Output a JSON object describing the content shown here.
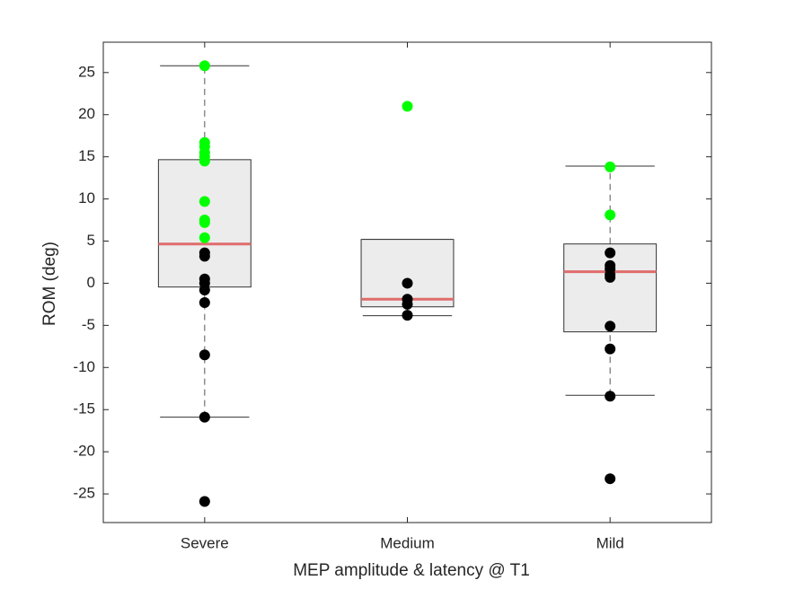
{
  "chart_data": {
    "type": "box",
    "xlabel": "MEP amplitude & latency @ T1",
    "ylabel": "ROM (deg)",
    "categories": [
      "Severe",
      "Medium",
      "Mild"
    ],
    "boxes": [
      {
        "lower": -15.9,
        "q1": -0.45,
        "median": 4.66,
        "q3": 14.66,
        "upper": 25.8
      },
      {
        "lower": -3.85,
        "q1": -2.8,
        "median": -1.9,
        "q3": 5.2,
        "upper": 5.2
      },
      {
        "lower": -13.3,
        "q1": -5.77,
        "median": 1.36,
        "q3": 4.66,
        "upper": 13.9
      }
    ],
    "box_color": "#ececec",
    "median_color": "#e06c6c",
    "series": [
      {
        "color": "#00ff00",
        "values": [
          [
            25.8,
            16.7,
            16.2,
            15.5,
            15.0,
            14.5,
            9.7,
            7.5,
            7.2,
            5.4
          ],
          [
            21.0
          ],
          [
            13.8,
            8.1
          ]
        ]
      },
      {
        "color": "#000000",
        "values": [
          [
            3.6,
            3.2,
            0.5,
            0.0,
            -0.8,
            -2.3,
            -8.5,
            -15.9,
            -25.9
          ],
          [
            0.0,
            -1.9,
            -2.5,
            -3.8
          ],
          [
            3.6,
            2.1,
            1.7,
            1.0,
            0.7,
            -5.1,
            -7.8,
            -13.4,
            -23.2
          ]
        ]
      }
    ],
    "ylim": [
      -28.4,
      28.6
    ],
    "yticks": [
      -25,
      -20,
      -15,
      -10,
      -5,
      0,
      5,
      10,
      15,
      20,
      25
    ],
    "grid": false
  }
}
